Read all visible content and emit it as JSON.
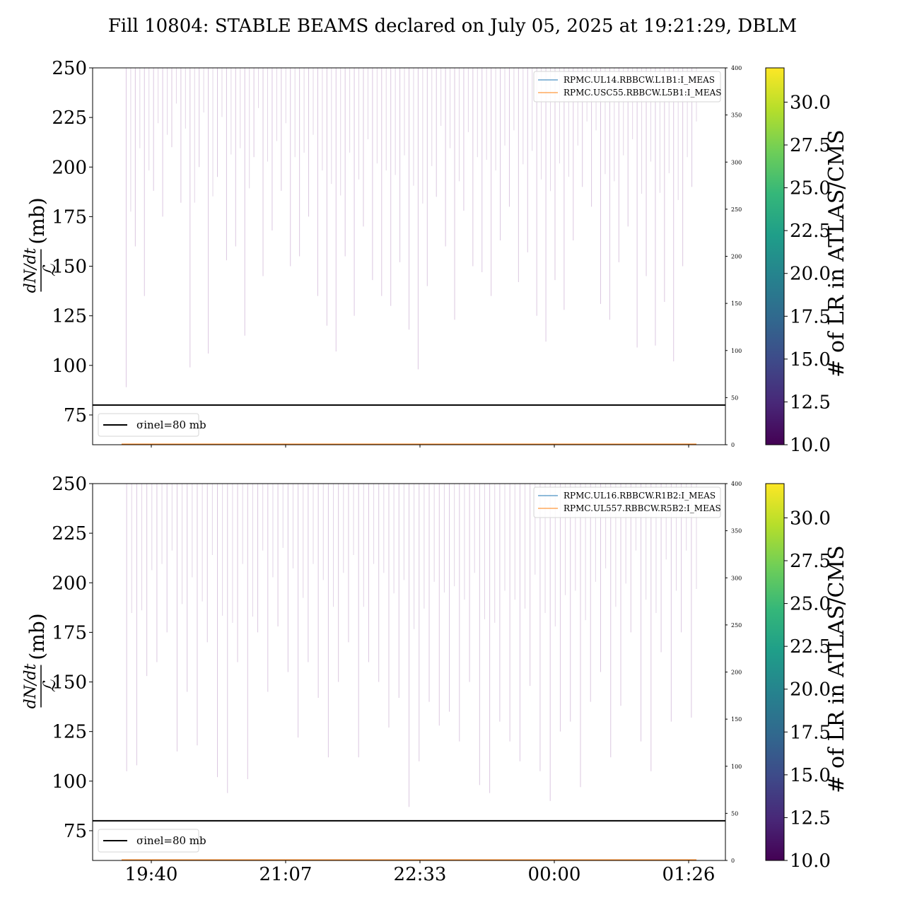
{
  "title": "Fill 10804: STABLE BEAMS declared on July 05, 2025 at 19:21:29, DBLM",
  "x_tick_labels": [
    "19:40",
    "21:07",
    "22:33",
    "00:00",
    "01:26"
  ],
  "colormap": {
    "name": "viridis",
    "label": "# of LR in ATLAS/CMS",
    "ticks": [
      "10.0",
      "12.5",
      "15.0",
      "17.5",
      "20.0",
      "22.5",
      "25.0",
      "27.5",
      "30.0"
    ],
    "range": [
      10,
      32
    ],
    "stops": [
      "#440154",
      "#482878",
      "#3e4a89",
      "#31688e",
      "#26828e",
      "#1f9e89",
      "#35b779",
      "#6ece58",
      "#b5de2b",
      "#fde725"
    ]
  },
  "chart_data": [
    {
      "type": "line",
      "panel": "top",
      "ylabel": "dN/dt / ℒ (mb)",
      "ylim": [
        60,
        250
      ],
      "y_ticks": [
        "75",
        "100",
        "125",
        "150",
        "175",
        "200",
        "225",
        "250"
      ],
      "y2_ticks": [
        "0",
        "50",
        "100",
        "150",
        "200",
        "250",
        "300",
        "350",
        "400"
      ],
      "y2lim": [
        0,
        400
      ],
      "reference_line": {
        "value": 80,
        "label": "σinel=80 mb",
        "color": "#000000"
      },
      "legend_right": [
        "RPMC.UL14.RBBCW.L1B1:I_MEAS",
        "RPMC.USC55.RBBCW.L5B1:I_MEAS"
      ],
      "series": [
        {
          "name": "RPMC.UL14.RBBCW.L1B1:I_MEAS",
          "color": "#1f77b4",
          "axis": "right",
          "values_constant": 0
        },
        {
          "name": "RPMC.USC55.RBBCW.L5B1:I_MEAS",
          "color": "#ff7f0e",
          "axis": "right",
          "values_constant": 0
        }
      ],
      "spikes": {
        "description": "dense vertical excursions of dN/dt/L colored by number of LR in ATLAS/CMS",
        "color": "#c7a9cf",
        "min_values": [
          89,
          160,
          135,
          188,
          175,
          210,
          182,
          99,
          200,
          106,
          195,
          153,
          160,
          115,
          205,
          145,
          168,
          188,
          150,
          155,
          175,
          135,
          120,
          107,
          155,
          125,
          170,
          143,
          135,
          130,
          152,
          118,
          98,
          140,
          185,
          160,
          123,
          178,
          150,
          147,
          135,
          163,
          180,
          142,
          157,
          125,
          112,
          143,
          128,
          163,
          190,
          180,
          131,
          123,
          152,
          170,
          109,
          145,
          110,
          132,
          102,
          150,
          190
        ]
      }
    },
    {
      "type": "line",
      "panel": "bottom",
      "ylabel": "dN/dt / ℒ (mb)",
      "ylim": [
        60,
        250
      ],
      "y_ticks": [
        "75",
        "100",
        "125",
        "150",
        "175",
        "200",
        "225",
        "250"
      ],
      "y2_ticks": [
        "0",
        "50",
        "100",
        "150",
        "200",
        "250",
        "300",
        "350",
        "400"
      ],
      "y2lim": [
        0,
        400
      ],
      "reference_line": {
        "value": 80,
        "label": "σinel=80 mb",
        "color": "#000000"
      },
      "legend_right": [
        "RPMC.UL16.RBBCW.R1B2:I_MEAS",
        "RPMC.UL557.RBBCW.R5B2:I_MEAS"
      ],
      "series": [
        {
          "name": "RPMC.UL16.RBBCW.R1B2:I_MEAS",
          "color": "#1f77b4",
          "axis": "right",
          "values_constant": 0
        },
        {
          "name": "RPMC.UL557.RBBCW.R5B2:I_MEAS",
          "color": "#ff7f0e",
          "axis": "right",
          "values_constant": 0
        }
      ],
      "spikes": {
        "description": "dense vertical excursions of dN/dt/L colored by number of LR in ATLAS/CMS",
        "color": "#c7a9cf",
        "min_values": [
          105,
          108,
          153,
          160,
          175,
          115,
          145,
          118,
          170,
          102,
          94,
          160,
          101,
          175,
          145,
          178,
          155,
          122,
          160,
          142,
          112,
          150,
          170,
          112,
          160,
          150,
          127,
          142,
          87,
          110,
          140,
          128,
          135,
          120,
          150,
          98,
          94,
          130,
          120,
          110,
          148,
          105,
          90,
          125,
          130,
          97,
          140,
          155,
          112,
          138,
          175,
          120,
          105,
          165,
          130,
          175,
          132
        ]
      }
    }
  ]
}
